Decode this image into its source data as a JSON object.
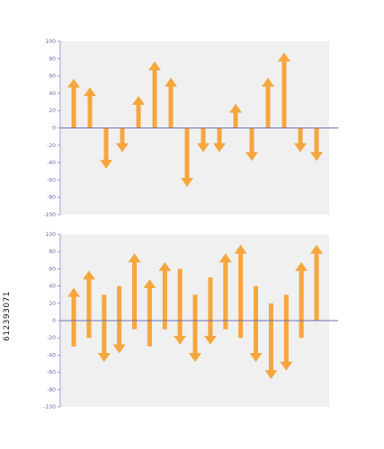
{
  "colors": {
    "arrow": "#f6a63e",
    "plot_bg": "#f0f0f0",
    "axis": "#7a7fc4",
    "zero_line": "#6b6fb0",
    "tick_label": "#6b6fb0"
  },
  "side_text": "612393071",
  "chart_data": [
    {
      "type": "bar",
      "mark": "arrow",
      "title": "",
      "xlabel": "",
      "ylabel": "",
      "ylim": [
        -100,
        100
      ],
      "yticks": [
        100,
        80,
        60,
        40,
        20,
        0,
        -20,
        -40,
        -60,
        -80,
        -100
      ],
      "grid": false,
      "bars": [
        {
          "from": 0,
          "to": 57
        },
        {
          "from": 0,
          "to": 47
        },
        {
          "from": 0,
          "to": -47
        },
        {
          "from": 0,
          "to": -28
        },
        {
          "from": 0,
          "to": 37
        },
        {
          "from": 0,
          "to": 77
        },
        {
          "from": 0,
          "to": 58
        },
        {
          "from": 0,
          "to": -68
        },
        {
          "from": 0,
          "to": -28
        },
        {
          "from": 0,
          "to": -28
        },
        {
          "from": 0,
          "to": 28
        },
        {
          "from": 0,
          "to": -38
        },
        {
          "from": 0,
          "to": 58
        },
        {
          "from": 0,
          "to": 87
        },
        {
          "from": 0,
          "to": -28
        },
        {
          "from": 0,
          "to": -38
        }
      ]
    },
    {
      "type": "bar",
      "mark": "arrow",
      "title": "",
      "xlabel": "",
      "ylabel": "",
      "ylim": [
        -100,
        100
      ],
      "yticks": [
        100,
        80,
        60,
        40,
        20,
        0,
        -20,
        -40,
        -60,
        -80,
        -100
      ],
      "grid": false,
      "bars": [
        {
          "from": -30,
          "to": 38
        },
        {
          "from": -20,
          "to": 58
        },
        {
          "from": 30,
          "to": -48
        },
        {
          "from": 40,
          "to": -38
        },
        {
          "from": -10,
          "to": 78
        },
        {
          "from": -30,
          "to": 48
        },
        {
          "from": -10,
          "to": 68
        },
        {
          "from": 60,
          "to": -28
        },
        {
          "from": 30,
          "to": -48
        },
        {
          "from": 50,
          "to": -28
        },
        {
          "from": -10,
          "to": 78
        },
        {
          "from": -20,
          "to": 88
        },
        {
          "from": 40,
          "to": -48
        },
        {
          "from": 20,
          "to": -68
        },
        {
          "from": 30,
          "to": -58
        },
        {
          "from": -20,
          "to": 68
        },
        {
          "from": 0,
          "to": 88
        }
      ]
    }
  ]
}
